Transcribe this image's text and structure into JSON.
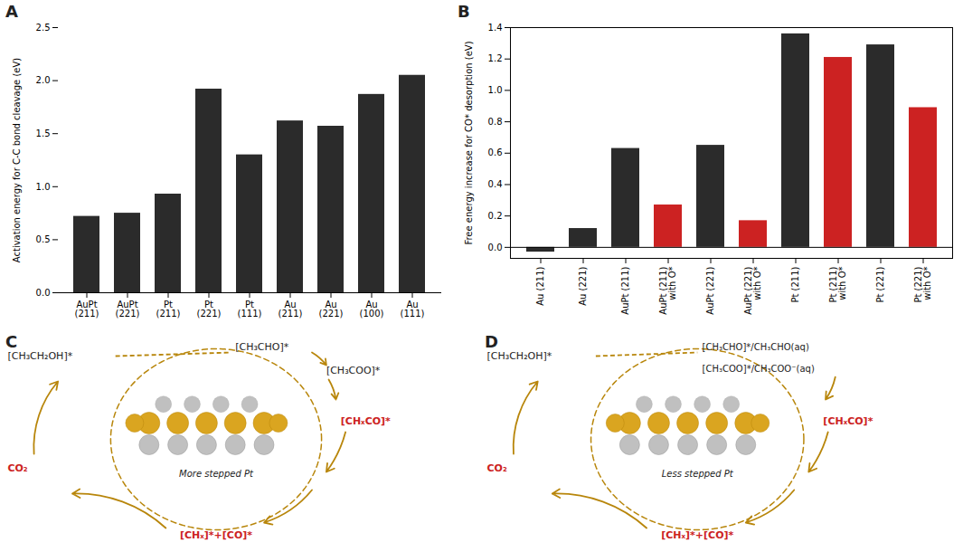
{
  "chart_data": [
    {
      "type": "bar",
      "title": "A",
      "categories": [
        "AuPt (211)",
        "AuPt (221)",
        "Pt (211)",
        "Pt (221)",
        "Pt (111)",
        "Au (211)",
        "Au (221)",
        "Au (100)",
        "Au (111)"
      ],
      "values": [
        0.72,
        0.75,
        0.93,
        1.92,
        1.3,
        1.62,
        1.57,
        1.87,
        2.05
      ],
      "color": "#2b2b2b",
      "ylabel": "Activation energy for C-C bond cleavage (eV)",
      "ylim": [
        0.0,
        2.5
      ],
      "yticks": [
        {
          "value": 0,
          "label": "0.0"
        },
        0.5,
        {
          "value": 1,
          "label": "1.0"
        },
        1.5,
        {
          "value": 2,
          "label": "2.0"
        },
        2.5
      ]
    },
    {
      "type": "bar",
      "title": "B",
      "categories": [
        "Au (211)",
        "Au (221)",
        "AuPt (211)",
        "AuPt (211)\nwith O*",
        "AuPt (221)",
        "AuPt (221)\nwith O*",
        "Pt (211)",
        "Pt (211)\nwith O*",
        "Pt (221)",
        "Pt (221)\nwith O*"
      ],
      "values": [
        -0.03,
        0.12,
        0.63,
        0.27,
        0.65,
        0.17,
        1.36,
        1.21,
        1.29,
        0.89
      ],
      "colors": [
        "#2b2b2b",
        "#2b2b2b",
        "#2b2b2b",
        "#cc2222",
        "#2b2b2b",
        "#cc2222",
        "#2b2b2b",
        "#cc2222",
        "#2b2b2b",
        "#cc2222"
      ],
      "ylabel": "Free energy increase for CO* desorption (eV)",
      "ylim": [
        -0.07,
        1.4
      ],
      "yticks": [
        {
          "value": 0,
          "label": "0.0"
        },
        0.2,
        0.4,
        0.6,
        0.8,
        {
          "value": 1,
          "label": "1.0"
        },
        1.2,
        1.4
      ]
    },
    {
      "type": "diagram",
      "title": "C",
      "subtitle": "More stepped Pt",
      "color": "#B8860B",
      "colors": [
        "#C0C0C0",
        "#DAA520"
      ],
      "annotations": [
        {
          "text": "[CH₃CH₂OH]*",
          "color": "#222222"
        },
        {
          "text": "[CH₃CHO]*",
          "color": "#222222"
        },
        {
          "text": "[CH₃COO]*",
          "color": "#222222"
        },
        {
          "text": "[CHₓCO]*",
          "color": "#cc2222"
        },
        {
          "text": "[CHₓ]*+[CO]*",
          "color": "#cc2222"
        },
        {
          "text": "CO₂",
          "color": "#cc2222"
        }
      ]
    },
    {
      "type": "diagram",
      "title": "D",
      "subtitle": "Less stepped Pt",
      "color": "#B8860B",
      "colors": [
        "#C0C0C0",
        "#DAA520"
      ],
      "annotations": [
        {
          "text": "[CH₃CH₂OH]*",
          "color": "#222222"
        },
        {
          "text": "[CH₃CHO]*/CH₃CHO(aq)",
          "color": "#222222"
        },
        {
          "text": "[CH₃COO]*/CH₃COO⁻(aq)",
          "color": "#222222"
        },
        {
          "text": "[CHₓCO]*",
          "color": "#cc2222"
        },
        {
          "text": "[CHₓ]*+[CO]*",
          "color": "#cc2222"
        },
        {
          "text": "CO₂",
          "color": "#cc2222"
        }
      ]
    }
  ]
}
